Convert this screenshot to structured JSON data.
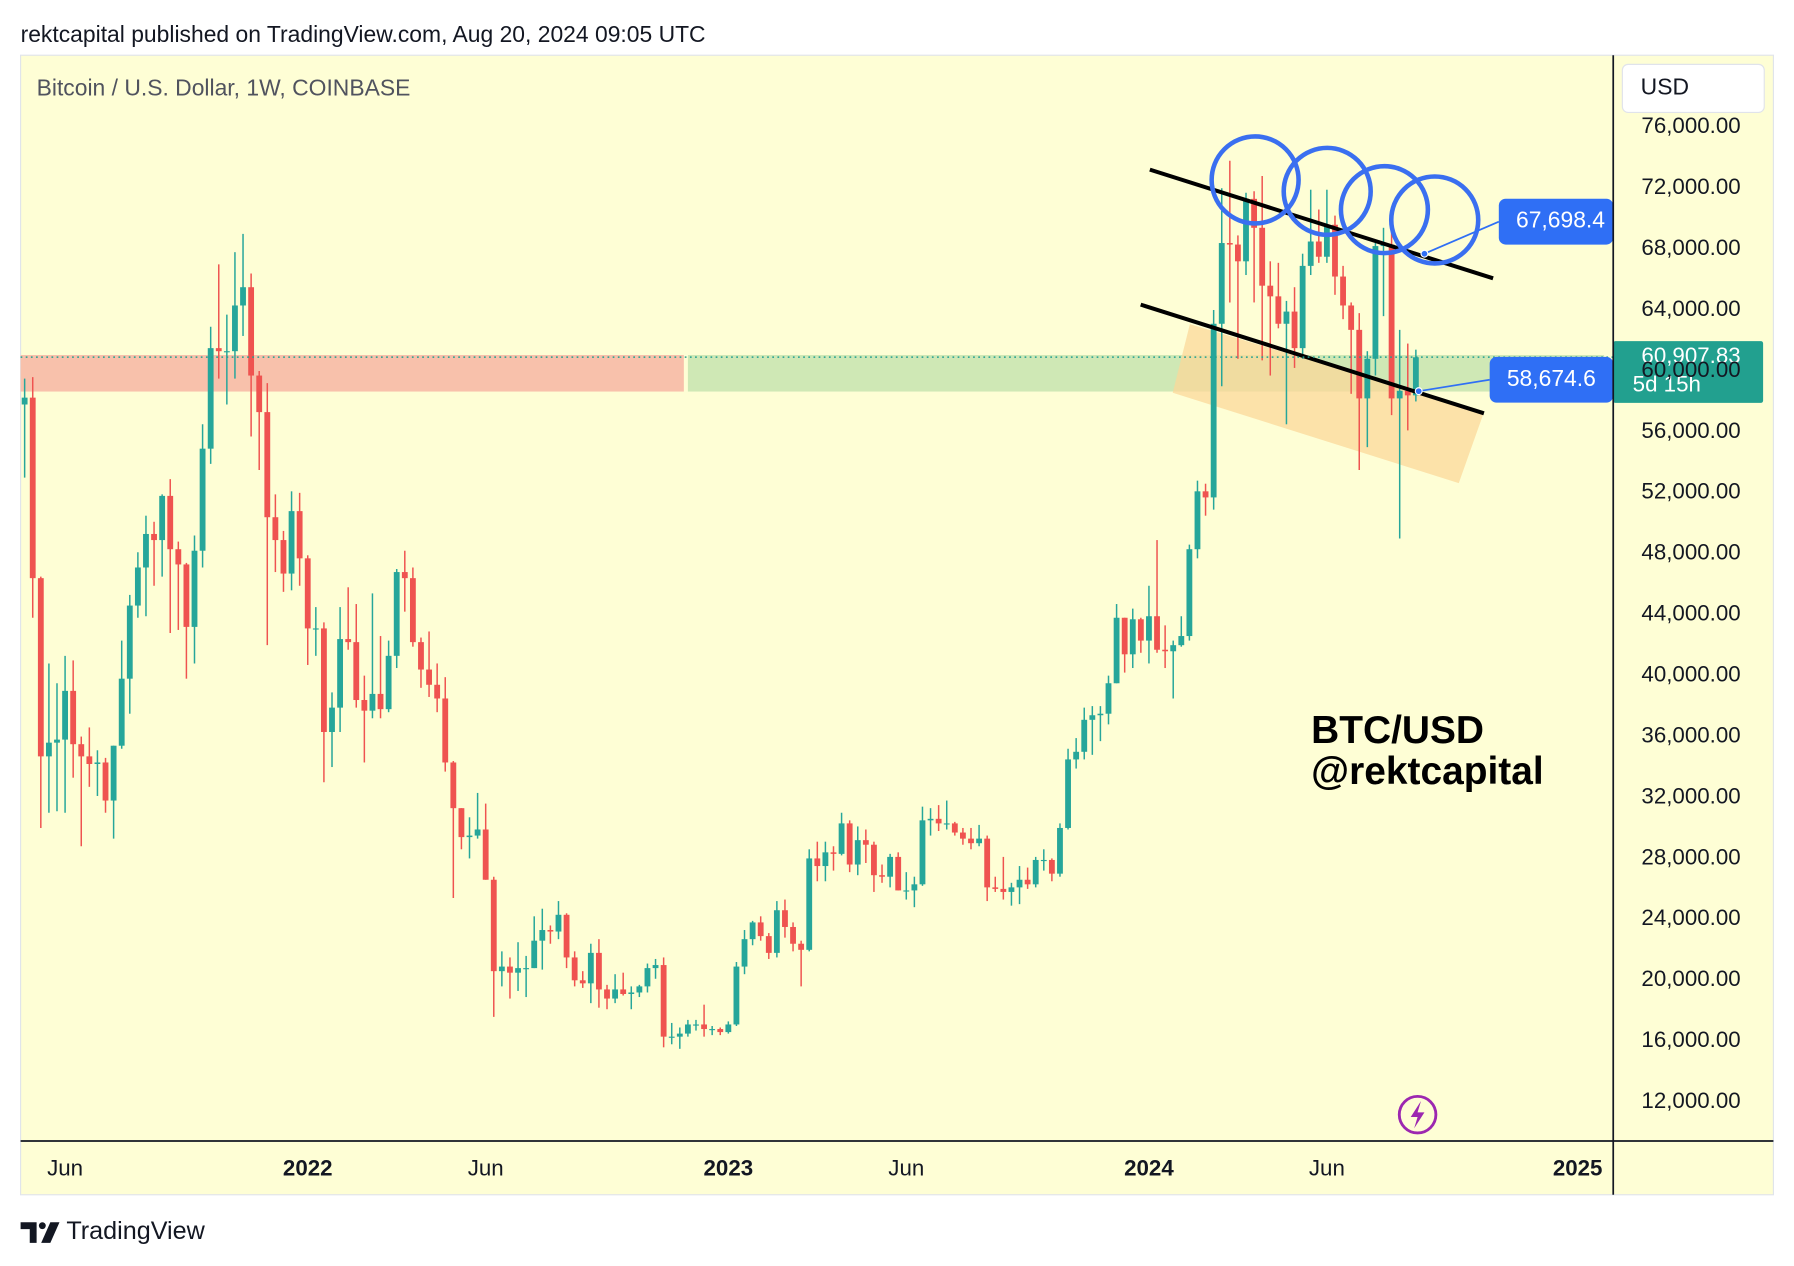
{
  "chart_data": {
    "type": "candlestick",
    "header": "rektcapital published on TradingView.com, Aug 20, 2024 09:05 UTC",
    "title": "Bitcoin / U.S. Dollar, 1W, COINBASE",
    "currency": "USD",
    "brand": "TradingView",
    "annotation": [
      "BTC/USD",
      "@rektcapital"
    ],
    "up_color": "#26a69a",
    "down_color": "#ef5350",
    "grid": false,
    "xlim": [
      -0.5,
      196.4
    ],
    "xticks": [
      {
        "value": 5,
        "label": "Jun"
      },
      {
        "value": 35,
        "label": "2022"
      },
      {
        "value": 57,
        "label": "Jun"
      },
      {
        "value": 87,
        "label": "2023"
      },
      {
        "value": 109,
        "label": "Jun"
      },
      {
        "value": 139,
        "label": "2024"
      },
      {
        "value": 161,
        "label": "Jun"
      },
      {
        "value": 192,
        "label": "2025"
      }
    ],
    "ylim": [
      9450,
      80730
    ],
    "yticks": [
      {
        "value": 12000,
        "label": "12,000.00"
      },
      {
        "value": 16000,
        "label": "16,000.00"
      },
      {
        "value": 20000,
        "label": "20,000.00"
      },
      {
        "value": 24000,
        "label": "24,000.00"
      },
      {
        "value": 28000,
        "label": "28,000.00"
      },
      {
        "value": 32000,
        "label": "32,000.00"
      },
      {
        "value": 36000,
        "label": "36,000.00"
      },
      {
        "value": 40000,
        "label": "40,000.00"
      },
      {
        "value": 44000,
        "label": "44,000.00"
      },
      {
        "value": 48000,
        "label": "48,000.00"
      },
      {
        "value": 52000,
        "label": "52,000.00"
      },
      {
        "value": 56000,
        "label": "56,000.00"
      },
      {
        "value": 60000,
        "label": "60,000.00"
      },
      {
        "value": 64000,
        "label": "64,000.00"
      },
      {
        "value": 68000,
        "label": "68,000.00"
      },
      {
        "value": 72000,
        "label": "72,000.00"
      },
      {
        "value": 76000,
        "label": "76,000.00"
      }
    ],
    "zones": [
      {
        "from": 58650,
        "to": 61050,
        "start": 0,
        "end": 82,
        "color": "#f8c1ab"
      },
      {
        "from": 58650,
        "to": 61050,
        "start": 82.5,
        "end": 196.4,
        "color": "#cfe8b5"
      }
    ],
    "last_price": {
      "value": 60907.83,
      "label": "60,907.83",
      "countdown": "5d 15h",
      "color": "#22a08f"
    },
    "price_labels": [
      {
        "value": 67698.4,
        "label": "67,698.4",
        "color": "#2f6ff5"
      },
      {
        "value": 58674.6,
        "label": "58,674.6",
        "color": "#2f6ff5"
      }
    ],
    "open": [
      57800,
      58250,
      46400,
      34700,
      35600,
      35800,
      39000,
      35500,
      34700,
      34200,
      34300,
      31800,
      35400,
      39800,
      44600,
      47100,
      49300,
      48900,
      51800,
      48300,
      47300,
      43200,
      48200,
      54900,
      61500,
      61300,
      61300,
      64300,
      65500,
      59700,
      57300,
      50400,
      48900,
      46700,
      50800,
      47700,
      43100,
      43100,
      36300,
      37900,
      42400,
      42200,
      38400,
      37700,
      38800,
      37800,
      41300,
      46800,
      46400,
      42200,
      40400,
      39400,
      38500,
      34300,
      31300,
      29400,
      29500,
      29900,
      26600,
      20600,
      20900,
      20500,
      20800,
      20800,
      22600,
      23300,
      23200,
      24300,
      21500,
      20000,
      19800,
      21800,
      19400,
      18800,
      19400,
      19100,
      19200,
      19600,
      20800,
      21000,
      16300,
      16300,
      16500,
      17100,
      17100,
      16800,
      16800,
      16600,
      17100,
      20900,
      22700,
      23800,
      22900,
      21800,
      24600,
      23500,
      22400,
      22000,
      28000,
      27500,
      28400,
      28300,
      30300,
      27600,
      29200,
      28900,
      26900,
      26800,
      28100,
      25900,
      25900,
      26300,
      30500,
      30600,
      30300,
      30300,
      29700,
      29300,
      29000,
      29300,
      26100,
      26000,
      25800,
      26100,
      26600,
      26300,
      27900,
      27900,
      27000,
      30000,
      34500,
      35000,
      37100,
      37400,
      37500,
      39500,
      43800,
      41400,
      43700,
      42300,
      43900,
      41700,
      41600,
      42000,
      42600,
      48300,
      52100,
      51700,
      63100,
      68400,
      68300,
      67200,
      71300,
      69400,
      65600,
      64900,
      63100,
      63900,
      61500,
      66900,
      68500,
      67500,
      69600,
      66200,
      64300,
      62700,
      58200,
      60800,
      68200,
      68300,
      58200,
      58700,
      58400
    ],
    "high": [
      59500,
      59600,
      46500,
      40800,
      39500,
      41300,
      41000,
      36000,
      36600,
      35100,
      34600,
      35400,
      42300,
      45300,
      48100,
      50500,
      50100,
      51900,
      52900,
      48800,
      47400,
      49200,
      56500,
      62900,
      67000,
      63700,
      67800,
      69000,
      66400,
      60000,
      59200,
      51900,
      49500,
      52100,
      52000,
      47900,
      44500,
      43500,
      38900,
      44500,
      45800,
      44700,
      40000,
      45400,
      42600,
      42300,
      47000,
      48200,
      47100,
      42500,
      42900,
      40800,
      39900,
      34400,
      31300,
      30700,
      32300,
      31600,
      26800,
      21900,
      21500,
      22500,
      21600,
      24200,
      24700,
      23600,
      25200,
      24400,
      21900,
      20600,
      22400,
      22700,
      19700,
      20400,
      20500,
      19600,
      19700,
      21100,
      21400,
      21500,
      17200,
      16900,
      17400,
      17400,
      18400,
      17000,
      16900,
      17300,
      21200,
      23300,
      23900,
      24200,
      23100,
      25200,
      25300,
      23800,
      22600,
      28600,
      29100,
      29100,
      28800,
      31000,
      30500,
      30100,
      29900,
      29100,
      27600,
      28300,
      28400,
      27100,
      26800,
      31400,
      31300,
      31500,
      31800,
      30400,
      30000,
      30000,
      30200,
      29500,
      26800,
      28100,
      26400,
      27500,
      27400,
      28100,
      28600,
      28000,
      30300,
      35200,
      35900,
      37900,
      38000,
      38000,
      40000,
      44700,
      43800,
      44400,
      43800,
      45900,
      48900,
      43300,
      42300,
      43900,
      48600,
      52800,
      52600,
      64000,
      72000,
      73800,
      68900,
      71700,
      71800,
      72800,
      67200,
      67100,
      64600,
      65500,
      67700,
      71900,
      70600,
      71900,
      70200,
      66900,
      64500,
      63800,
      61300,
      68400,
      69400,
      70000,
      62700,
      61800,
      61400
    ],
    "low": [
      53000,
      43800,
      30000,
      31000,
      31100,
      31000,
      33300,
      28800,
      32700,
      32100,
      31000,
      29300,
      35200,
      37500,
      43800,
      43900,
      45900,
      46500,
      42800,
      43000,
      39800,
      40800,
      47100,
      53900,
      59500,
      57800,
      59500,
      62300,
      55700,
      53500,
      42000,
      46800,
      45500,
      45600,
      45900,
      40700,
      41300,
      33000,
      34000,
      36300,
      41700,
      37900,
      34300,
      37200,
      37200,
      37600,
      40500,
      44200,
      41900,
      39200,
      38600,
      37600,
      33700,
      25400,
      28600,
      28000,
      29300,
      26600,
      17600,
      19600,
      18800,
      19300,
      18900,
      20800,
      20700,
      22400,
      22700,
      20800,
      19600,
      19500,
      18500,
      18200,
      18100,
      18500,
      19000,
      18100,
      18900,
      19200,
      20100,
      15600,
      15800,
      15500,
      16300,
      16700,
      16300,
      16400,
      16400,
      16500,
      17000,
      20400,
      22300,
      22600,
      21400,
      21500,
      22800,
      21900,
      19600,
      21900,
      26500,
      26500,
      27200,
      28200,
      27100,
      26900,
      27700,
      25800,
      26400,
      26100,
      25900,
      25300,
      24800,
      26200,
      29500,
      29800,
      29900,
      29500,
      28900,
      28600,
      28800,
      25200,
      25800,
      25300,
      24900,
      25000,
      26000,
      26100,
      27200,
      26500,
      26800,
      29900,
      33900,
      34500,
      34800,
      35700,
      36800,
      39500,
      40200,
      40500,
      41500,
      40800,
      41500,
      40500,
      38500,
      41900,
      42300,
      47700,
      50500,
      50900,
      59000,
      64500,
      60800,
      66300,
      64500,
      60700,
      59700,
      62800,
      56500,
      60200,
      60800,
      66300,
      67100,
      67100,
      65000,
      63400,
      58500,
      53500,
      55000,
      59700,
      63600,
      57100,
      49000,
      56100,
      58000
    ],
    "close": [
      58250,
      46400,
      34700,
      35600,
      35800,
      39000,
      35500,
      34700,
      34200,
      34300,
      31800,
      35400,
      39800,
      44600,
      47100,
      49300,
      48900,
      51800,
      48300,
      47300,
      43200,
      48200,
      54900,
      61500,
      61300,
      61300,
      64300,
      65500,
      59700,
      57300,
      50400,
      48900,
      46700,
      50800,
      47700,
      43100,
      43100,
      36300,
      37900,
      42400,
      42200,
      38400,
      37700,
      38800,
      37800,
      41300,
      46800,
      46400,
      42200,
      40400,
      39400,
      38500,
      34300,
      31300,
      29400,
      29500,
      29900,
      26600,
      20600,
      20900,
      20500,
      20800,
      20800,
      22600,
      23300,
      23200,
      24300,
      21500,
      20000,
      19800,
      21800,
      19400,
      18800,
      19400,
      19100,
      19200,
      19600,
      20800,
      21000,
      16300,
      16300,
      16500,
      17100,
      17100,
      16800,
      16800,
      16600,
      17100,
      20900,
      22700,
      23800,
      22900,
      21800,
      24600,
      23500,
      22400,
      22000,
      28000,
      27500,
      28400,
      28300,
      30300,
      27600,
      29200,
      28900,
      26900,
      26800,
      28100,
      25900,
      25900,
      26300,
      30500,
      30600,
      30300,
      30300,
      29700,
      29300,
      29000,
      29300,
      26100,
      26000,
      25800,
      26100,
      26600,
      26300,
      27900,
      27900,
      27000,
      30000,
      34500,
      35000,
      37100,
      37400,
      37500,
      39500,
      43800,
      41400,
      43700,
      42300,
      43900,
      41700,
      41600,
      42000,
      42600,
      48300,
      52100,
      51700,
      63100,
      68400,
      68300,
      67200,
      71300,
      69400,
      65600,
      64900,
      63100,
      63900,
      61500,
      66900,
      68500,
      67500,
      69600,
      66200,
      64300,
      62700,
      58200,
      60800,
      68200,
      68300,
      58200,
      58700,
      58400,
      60900
    ]
  }
}
